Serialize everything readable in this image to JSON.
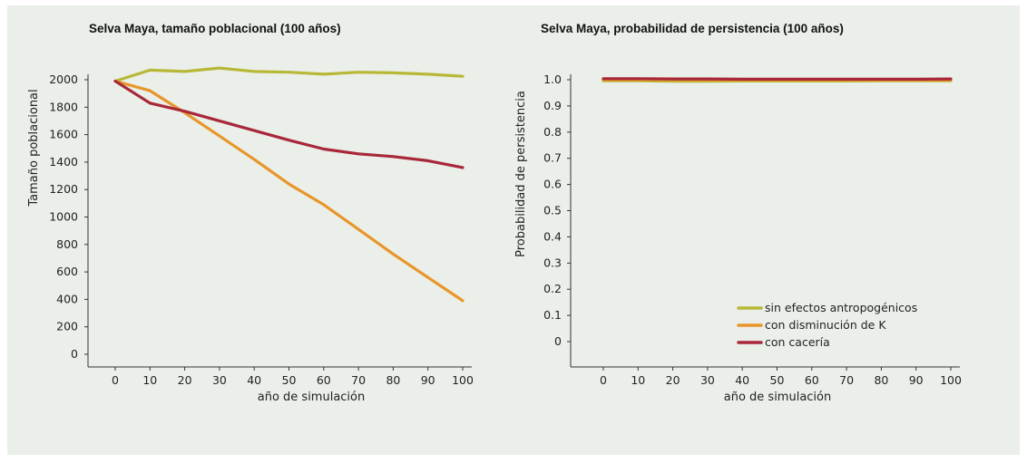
{
  "colors": {
    "background": "#ebefe9",
    "sin_efectos": "#b8b838",
    "disminucion_k": "#e8962a",
    "caceria": "#a8283a"
  },
  "chart_data": [
    {
      "type": "line",
      "title": "Selva Maya, tamaño poblacional (100 años)",
      "xlabel": "año de simulación",
      "ylabel": "Tamaño poblacional",
      "x": [
        0,
        10,
        20,
        30,
        40,
        50,
        60,
        70,
        80,
        90,
        100
      ],
      "x_ticks": [
        "0",
        "10",
        "20",
        "30",
        "40",
        "50",
        "60",
        "70",
        "80",
        "90",
        "100"
      ],
      "y_ticks": [
        "0",
        "200",
        "400",
        "600",
        "800",
        "1000",
        "1200",
        "1400",
        "1600",
        "1800",
        "2000"
      ],
      "ylim": [
        0,
        2000
      ],
      "grid": false,
      "series": [
        {
          "name": "sin efectos antropogénicos",
          "color_key": "sin_efectos",
          "values": [
            1990,
            2070,
            2060,
            2085,
            2060,
            2055,
            2040,
            2055,
            2050,
            2040,
            2025
          ]
        },
        {
          "name": "con disminución de K",
          "color_key": "disminucion_k",
          "values": [
            1990,
            1920,
            1760,
            1590,
            1420,
            1240,
            1090,
            910,
            730,
            560,
            390
          ]
        },
        {
          "name": "con cacería",
          "color_key": "caceria",
          "values": [
            1990,
            1830,
            1770,
            1700,
            1630,
            1560,
            1495,
            1460,
            1440,
            1410,
            1360
          ]
        }
      ]
    },
    {
      "type": "line",
      "title": "Selva Maya, probabilidad de persistencia (100 años)",
      "xlabel": "año de simulación",
      "ylabel": "Probabilidad de persistencia",
      "x": [
        0,
        10,
        20,
        30,
        40,
        50,
        60,
        70,
        80,
        90,
        100
      ],
      "x_ticks": [
        "0",
        "10",
        "20",
        "30",
        "40",
        "50",
        "60",
        "70",
        "80",
        "90",
        "100"
      ],
      "y_ticks": [
        "0",
        "0.1",
        "0.2",
        "0.3",
        "0.4",
        "0.5",
        "0.6",
        "0.7",
        "0.8",
        "0.9",
        "1.0"
      ],
      "ylim": [
        0,
        1
      ],
      "grid": false,
      "legend": "bottom-right",
      "series": [
        {
          "name": "sin efectos antropogénicos",
          "color_key": "sin_efectos",
          "values": [
            0.996,
            0.996,
            0.994,
            0.994,
            0.995,
            0.995,
            0.995,
            0.995,
            0.996,
            0.996,
            0.996
          ]
        },
        {
          "name": "con disminución de K",
          "color_key": "disminucion_k",
          "values": [
            1.0,
            1.0,
            1.0,
            0.999,
            0.999,
            0.999,
            0.999,
            0.999,
            0.999,
            0.999,
            0.999
          ]
        },
        {
          "name": "con cacería",
          "color_key": "caceria",
          "values": [
            1.004,
            1.004,
            1.003,
            1.003,
            1.002,
            1.002,
            1.002,
            1.002,
            1.002,
            1.002,
            1.003
          ]
        }
      ]
    }
  ]
}
